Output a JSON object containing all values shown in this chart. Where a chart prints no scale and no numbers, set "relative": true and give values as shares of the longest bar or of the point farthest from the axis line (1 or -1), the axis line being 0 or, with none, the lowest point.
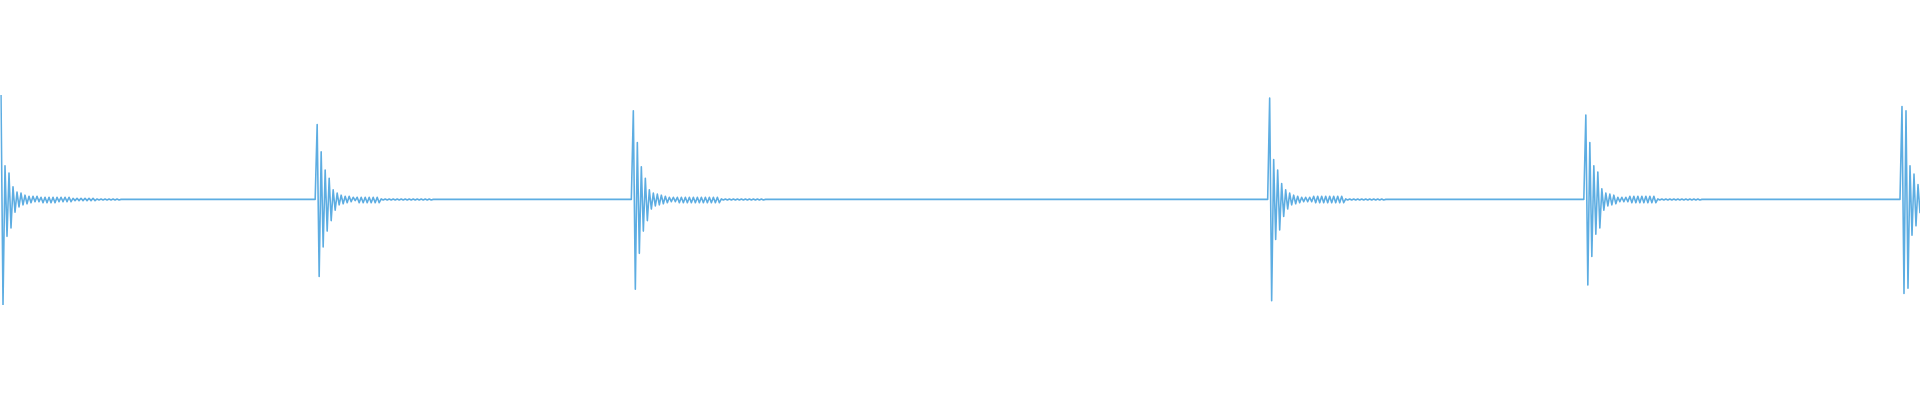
{
  "chart_data": {
    "type": "line",
    "relative": true,
    "categories": [
      null,
      null,
      null,
      null,
      null,
      null,
      null,
      null,
      null,
      null,
      null,
      null,
      null,
      null,
      null,
      null,
      null,
      null,
      null,
      null,
      null,
      null,
      null,
      null,
      null,
      null,
      null,
      null,
      null,
      null,
      null,
      null,
      null,
      null,
      null,
      null,
      null,
      null,
      null,
      null,
      null,
      null,
      null,
      null,
      null,
      null,
      null,
      null,
      null,
      null,
      null,
      null,
      null,
      null,
      null,
      null,
      null,
      null,
      null,
      null,
      null,
      null,
      null,
      null,
      null,
      null,
      null,
      null,
      null,
      null,
      null,
      null,
      null,
      null,
      null,
      null,
      null,
      null,
      null,
      null,
      null,
      null,
      null,
      null,
      null,
      null,
      null,
      null,
      null,
      null,
      null,
      null,
      null,
      null,
      null,
      null,
      null,
      null,
      null,
      null,
      null,
      null,
      null,
      null,
      null,
      null,
      null,
      null,
      null,
      null,
      null,
      null,
      null,
      null,
      null,
      null,
      null,
      null,
      null,
      null,
      null,
      null,
      null,
      null,
      null,
      null,
      null,
      null,
      null,
      null,
      null,
      null,
      null,
      null,
      null,
      null,
      null,
      null,
      null,
      null,
      null,
      null,
      null,
      null,
      null,
      null,
      null,
      null,
      null,
      null,
      null,
      null,
      null,
      null,
      null,
      null,
      null,
      null,
      null,
      null,
      null,
      null,
      null,
      null,
      null,
      null,
      null,
      null,
      null,
      null,
      null,
      null,
      null,
      null,
      null,
      null,
      null,
      null,
      null,
      null,
      null,
      null,
      null,
      null,
      null,
      null,
      null,
      null,
      null,
      null,
      null,
      null,
      null,
      null,
      null,
      null,
      null,
      null,
      null,
      null,
      null,
      null,
      null,
      null,
      null,
      null,
      null,
      null,
      null,
      null,
      null,
      null,
      null,
      null,
      null,
      null,
      null,
      null,
      null,
      null,
      null,
      null,
      null,
      null,
      null,
      null,
      null,
      null,
      null,
      null,
      null,
      null,
      null,
      null,
      null,
      null,
      null,
      null,
      null,
      null,
      null,
      null,
      null,
      null,
      null,
      null,
      null,
      null,
      null,
      null,
      null,
      null,
      null,
      null,
      null,
      null,
      null,
      null,
      null,
      null,
      null,
      null,
      null,
      null,
      null,
      null,
      null,
      null,
      null,
      null,
      null,
      null,
      null,
      null,
      null,
      null,
      null,
      null,
      null,
      null,
      null,
      null,
      null,
      null,
      null,
      null,
      null,
      null,
      null,
      null,
      null,
      null,
      null,
      null,
      null,
      null,
      null,
      null,
      null,
      null,
      null,
      null,
      null,
      null,
      null,
      null,
      null,
      null,
      null,
      null,
      null,
      null,
      null,
      null,
      null,
      null,
      null,
      null,
      null,
      null,
      null,
      null,
      null,
      null,
      null,
      null,
      null,
      null,
      null,
      null,
      null,
      null,
      null,
      null,
      null,
      null,
      null,
      null,
      null,
      null,
      null,
      null,
      null,
      null,
      null,
      null,
      null,
      null,
      null,
      null,
      null,
      null,
      null,
      null,
      null,
      null,
      null,
      null,
      null,
      null,
      null,
      null,
      null,
      null,
      null,
      null,
      null,
      null,
      null,
      null,
      null,
      null,
      null,
      null,
      null,
      null,
      null,
      null,
      null,
      null,
      null,
      null,
      null,
      null,
      null,
      null,
      null,
      null,
      null,
      null,
      null,
      null,
      null,
      null,
      null,
      null,
      null,
      null,
      null,
      null,
      null,
      null,
      null,
      null,
      null,
      null,
      null,
      null,
      null,
      null,
      null,
      null,
      null,
      null,
      null,
      null,
      null,
      null,
      null,
      null,
      null,
      null,
      null,
      null,
      null,
      null,
      null,
      null,
      null,
      null,
      null,
      null,
      null,
      null,
      null,
      null,
      null,
      null,
      null,
      null,
      null,
      null,
      null,
      null,
      null,
      null,
      null,
      null,
      null,
      null,
      null,
      null,
      null,
      null,
      null,
      null,
      null,
      null,
      null,
      null,
      null,
      null,
      null,
      null,
      null,
      null,
      null,
      null,
      null,
      null,
      null,
      null,
      null,
      null,
      null,
      null,
      null,
      null,
      null,
      null,
      null,
      null,
      null,
      null,
      null,
      null,
      null,
      null,
      null,
      null,
      null,
      null,
      null,
      null,
      null,
      null,
      null,
      null,
      null,
      null,
      null,
      null,
      null,
      null,
      null,
      null,
      null,
      null,
      null,
      null,
      null,
      null,
      null,
      null,
      null,
      null,
      null,
      null,
      null,
      null,
      null,
      null,
      null,
      null,
      null,
      null,
      null,
      null,
      null,
      null,
      null,
      null,
      null,
      null,
      null,
      null,
      null,
      null,
      null,
      null,
      null,
      null,
      null,
      null,
      null,
      null,
      null,
      null,
      null,
      null,
      null,
      null,
      null,
      null,
      null,
      null,
      null,
      null,
      null,
      null,
      null,
      null,
      null,
      null,
      null,
      null,
      null,
      null,
      null,
      null,
      null,
      null,
      null,
      null,
      null,
      null,
      null,
      null,
      null,
      null,
      null,
      null,
      null,
      null,
      null,
      null,
      null,
      null,
      null,
      null,
      null,
      null,
      null,
      null,
      null,
      null,
      null,
      null,
      null,
      null,
      null,
      null,
      null,
      null,
      null,
      null,
      null,
      null,
      null,
      null,
      null,
      null,
      null,
      null,
      null,
      null,
      null,
      null,
      null,
      null,
      null,
      null,
      null,
      null,
      null,
      null,
      null,
      null,
      null,
      null,
      null,
      null,
      null,
      null,
      null,
      null,
      null,
      null,
      null,
      null,
      null,
      null,
      null,
      null,
      null,
      null,
      null,
      null,
      null,
      null,
      null,
      null,
      null,
      null,
      null,
      null,
      null,
      null,
      null,
      null,
      null,
      null,
      null,
      null,
      null,
      null,
      null,
      null,
      null,
      null,
      null,
      null,
      null,
      null,
      null,
      null,
      null,
      null,
      null,
      null,
      null,
      null,
      null,
      null,
      null,
      null,
      null,
      null,
      null,
      null,
      null,
      null,
      null,
      null,
      null,
      null,
      null,
      null,
      null,
      null,
      null,
      null,
      null,
      null,
      null,
      null,
      null,
      null,
      null,
      null,
      null,
      null,
      null,
      null,
      null,
      null,
      null,
      null,
      null,
      null,
      null,
      null,
      null,
      null,
      null,
      null,
      null,
      null,
      null,
      null,
      null,
      null,
      null,
      null,
      null,
      null,
      null,
      null,
      null,
      null,
      null,
      null,
      null,
      null,
      null,
      null,
      null,
      null,
      null,
      null,
      null,
      null,
      null,
      null,
      null,
      null,
      null,
      null,
      null,
      null,
      null,
      null,
      null,
      null,
      null,
      null,
      null,
      null,
      null,
      null,
      null,
      null,
      null,
      null,
      null,
      null,
      null,
      null,
      null,
      null,
      null,
      null,
      null,
      null,
      null,
      null,
      null,
      null,
      null,
      null,
      null,
      null,
      null,
      null,
      null,
      null,
      null,
      null,
      null,
      null,
      null,
      null,
      null,
      null,
      null,
      null,
      null,
      null,
      null,
      null,
      null,
      null,
      null,
      null,
      null,
      null,
      null,
      null,
      null,
      null,
      null,
      null,
      null,
      null,
      null,
      null,
      null,
      null,
      null,
      null,
      null,
      null,
      null,
      null,
      null,
      null,
      null,
      null,
      null,
      null,
      null,
      null,
      null,
      null,
      null,
      null,
      null,
      null,
      null,
      null,
      null,
      null,
      null,
      null,
      null,
      null,
      null,
      null,
      null,
      null,
      null,
      null,
      null,
      null,
      null,
      null,
      null,
      null,
      null,
      null,
      null,
      null,
      null,
      null,
      null,
      null,
      null,
      null,
      null,
      null,
      null,
      null,
      null,
      null,
      null,
      null,
      null,
      null,
      null,
      null,
      null,
      null,
      null,
      null,
      null,
      null,
      null,
      null,
      null,
      null,
      null,
      null,
      null,
      null,
      null,
      null,
      null,
      null,
      null,
      null,
      null,
      null,
      null,
      null,
      null,
      null,
      null,
      null,
      null,
      null,
      null,
      null,
      null,
      null,
      null,
      null,
      null,
      null,
      null,
      null,
      null,
      null,
      null,
      null,
      null,
      null,
      null,
      null,
      null,
      null,
      null,
      null,
      null,
      null,
      null,
      null,
      null,
      null,
      null,
      null,
      null,
      null,
      null,
      null,
      null,
      null,
      null,
      null,
      null,
      null
    ],
    "series": [
      {
        "color": "#5dade2",
        "values": [
          1,
          0,
          0.663,
          0.327,
          0.628,
          0.367,
          0.563,
          0.442,
          0.538,
          0.467,
          0.533,
          0.477,
          0.523,
          0.482,
          0.518,
          0.487,
          0.518,
          0.492,
          0.518,
          0.492,
          0.513,
          0.487,
          0.513,
          0.487,
          0.513,
          0.487,
          0.513,
          0.487,
          0.513,
          0.492,
          0.513,
          0.492,
          0.513,
          0.492,
          0.513,
          0.492,
          0.508,
          0.497,
          0.508,
          0.497,
          0.508,
          0.497,
          0.508,
          0.497,
          0.508,
          0.497,
          0.508,
          0.497,
          0.505,
          0.5,
          0.505,
          0.5,
          0.505,
          0.5,
          0.505,
          0.5,
          0.505,
          0.5,
          0.505,
          0.5,
          0.503,
          0.503,
          0.503,
          0.503,
          0.503,
          0.503,
          0.503,
          0.503,
          0.503,
          0.503,
          0.503,
          0.503,
          0.503,
          0.503,
          0.503,
          0.503,
          0.503,
          0.503,
          0.503,
          0.503,
          0.503,
          0.503,
          0.503,
          0.503,
          0.503,
          0.503,
          0.503,
          0.503,
          0.503,
          0.503,
          0.503,
          0.503,
          0.503,
          0.503,
          0.503,
          0.503,
          0.503,
          0.503,
          0.503,
          0.503,
          0.503,
          0.503,
          0.503,
          0.503,
          0.503,
          0.503,
          0.503,
          0.503,
          0.503,
          0.503,
          0.503,
          0.503,
          0.503,
          0.503,
          0.503,
          0.503,
          0.503,
          0.503,
          0.503,
          0.503,
          0.503,
          0.503,
          0.503,
          0.503,
          0.503,
          0.503,
          0.503,
          0.503,
          0.503,
          0.503,
          0.503,
          0.503,
          0.503,
          0.503,
          0.503,
          0.503,
          0.503,
          0.503,
          0.503,
          0.503,
          0.503,
          0.503,
          0.503,
          0.503,
          0.503,
          0.503,
          0.503,
          0.503,
          0.503,
          0.503,
          0.503,
          0.503,
          0.503,
          0.503,
          0.503,
          0.503,
          0.503,
          0.503,
          0.859,
          0.136,
          0.729,
          0.276,
          0.643,
          0.352,
          0.603,
          0.402,
          0.548,
          0.452,
          0.533,
          0.477,
          0.523,
          0.482,
          0.518,
          0.487,
          0.518,
          0.492,
          0.513,
          0.497,
          0.513,
          0.487,
          0.513,
          0.487,
          0.513,
          0.487,
          0.513,
          0.487,
          0.513,
          0.487,
          0.513,
          0.487,
          0.505,
          0.5,
          0.505,
          0.5,
          0.505,
          0.5,
          0.505,
          0.5,
          0.505,
          0.5,
          0.505,
          0.5,
          0.505,
          0.5,
          0.505,
          0.5,
          0.505,
          0.5,
          0.505,
          0.5,
          0.505,
          0.5,
          0.505,
          0.5,
          0.505,
          0.5,
          0.503,
          0.503,
          0.503,
          0.503,
          0.503,
          0.503,
          0.503,
          0.503,
          0.503,
          0.503,
          0.503,
          0.503,
          0.503,
          0.503,
          0.503,
          0.503,
          0.503,
          0.503,
          0.503,
          0.503,
          0.503,
          0.503,
          0.503,
          0.503,
          0.503,
          0.503,
          0.503,
          0.503,
          0.503,
          0.503,
          0.503,
          0.503,
          0.503,
          0.503,
          0.503,
          0.503,
          0.503,
          0.503,
          0.503,
          0.503,
          0.503,
          0.503,
          0.503,
          0.503,
          0.503,
          0.503,
          0.503,
          0.503,
          0.503,
          0.503,
          0.503,
          0.503,
          0.503,
          0.503,
          0.503,
          0.503,
          0.503,
          0.503,
          0.503,
          0.503,
          0.503,
          0.503,
          0.503,
          0.503,
          0.503,
          0.503,
          0.503,
          0.503,
          0.503,
          0.503,
          0.503,
          0.503,
          0.503,
          0.503,
          0.503,
          0.503,
          0.503,
          0.503,
          0.503,
          0.503,
          0.503,
          0.503,
          0.503,
          0.503,
          0.503,
          0.503,
          0.503,
          0.503,
          0.503,
          0.503,
          0.503,
          0.503,
          0.503,
          0.503,
          0.503,
          0.503,
          0.503,
          0.503,
          0.503,
          0.503,
          0.925,
          0.075,
          0.774,
          0.246,
          0.658,
          0.352,
          0.603,
          0.402,
          0.548,
          0.457,
          0.533,
          0.472,
          0.528,
          0.477,
          0.523,
          0.482,
          0.518,
          0.487,
          0.513,
          0.492,
          0.513,
          0.492,
          0.513,
          0.487,
          0.513,
          0.487,
          0.513,
          0.487,
          0.513,
          0.487,
          0.513,
          0.487,
          0.513,
          0.487,
          0.513,
          0.487,
          0.513,
          0.487,
          0.513,
          0.487,
          0.513,
          0.487,
          0.513,
          0.487,
          0.505,
          0.5,
          0.505,
          0.5,
          0.505,
          0.5,
          0.505,
          0.5,
          0.505,
          0.5,
          0.505,
          0.5,
          0.505,
          0.5,
          0.505,
          0.5,
          0.505,
          0.5,
          0.505,
          0.5,
          0.505,
          0.5,
          0.503,
          0.503,
          0.503,
          0.503,
          0.503,
          0.503,
          0.503,
          0.503,
          0.503,
          0.503,
          0.503,
          0.503,
          0.503,
          0.503,
          0.503,
          0.503,
          0.503,
          0.503,
          0.503,
          0.503,
          0.503,
          0.503,
          0.503,
          0.503,
          0.503,
          0.503,
          0.503,
          0.503,
          0.503,
          0.503,
          0.503,
          0.503,
          0.503,
          0.503,
          0.503,
          0.503,
          0.503,
          0.503,
          0.503,
          0.503,
          0.503,
          0.503,
          0.503,
          0.503,
          0.503,
          0.503,
          0.503,
          0.503,
          0.503,
          0.503,
          0.503,
          0.503,
          0.503,
          0.503,
          0.503,
          0.503,
          0.503,
          0.503,
          0.503,
          0.503,
          0.503,
          0.503,
          0.503,
          0.503,
          0.503,
          0.503,
          0.503,
          0.503,
          0.503,
          0.503,
          0.503,
          0.503,
          0.503,
          0.503,
          0.503,
          0.503,
          0.503,
          0.503,
          0.503,
          0.503,
          0.503,
          0.503,
          0.503,
          0.503,
          0.503,
          0.503,
          0.503,
          0.503,
          0.503,
          0.503,
          0.503,
          0.503,
          0.503,
          0.503,
          0.503,
          0.503,
          0.503,
          0.503,
          0.503,
          0.503,
          0.503,
          0.503,
          0.503,
          0.503,
          0.503,
          0.503,
          0.503,
          0.503,
          0.503,
          0.503,
          0.503,
          0.503,
          0.503,
          0.503,
          0.503,
          0.503,
          0.503,
          0.503,
          0.503,
          0.503,
          0.503,
          0.503,
          0.503,
          0.503,
          0.503,
          0.503,
          0.503,
          0.503,
          0.503,
          0.503,
          0.503,
          0.503,
          0.503,
          0.503,
          0.503,
          0.503,
          0.503,
          0.503,
          0.503,
          0.503,
          0.503,
          0.503,
          0.503,
          0.503,
          0.503,
          0.503,
          0.503,
          0.503,
          0.503,
          0.503,
          0.503,
          0.503,
          0.503,
          0.503,
          0.503,
          0.503,
          0.503,
          0.503,
          0.503,
          0.503,
          0.503,
          0.503,
          0.503,
          0.503,
          0.503,
          0.503,
          0.503,
          0.503,
          0.503,
          0.503,
          0.503,
          0.503,
          0.503,
          0.503,
          0.503,
          0.503,
          0.503,
          0.503,
          0.503,
          0.503,
          0.503,
          0.503,
          0.503,
          0.503,
          0.503,
          0.503,
          0.503,
          0.503,
          0.503,
          0.503,
          0.503,
          0.503,
          0.503,
          0.503,
          0.503,
          0.503,
          0.503,
          0.503,
          0.503,
          0.503,
          0.503,
          0.503,
          0.503,
          0.503,
          0.503,
          0.503,
          0.503,
          0.503,
          0.503,
          0.503,
          0.503,
          0.503,
          0.503,
          0.503,
          0.503,
          0.503,
          0.503,
          0.503,
          0.503,
          0.503,
          0.503,
          0.503,
          0.503,
          0.503,
          0.503,
          0.503,
          0.503,
          0.503,
          0.503,
          0.503,
          0.503,
          0.503,
          0.503,
          0.503,
          0.503,
          0.503,
          0.503,
          0.503,
          0.503,
          0.503,
          0.503,
          0.503,
          0.503,
          0.503,
          0.503,
          0.503,
          0.503,
          0.503,
          0.503,
          0.503,
          0.503,
          0.503,
          0.985,
          0.02,
          0.693,
          0.312,
          0.643,
          0.357,
          0.578,
          0.422,
          0.548,
          0.457,
          0.533,
          0.477,
          0.523,
          0.482,
          0.518,
          0.487,
          0.513,
          0.492,
          0.513,
          0.492,
          0.513,
          0.492,
          0.518,
          0.487,
          0.518,
          0.487,
          0.518,
          0.487,
          0.518,
          0.487,
          0.518,
          0.487,
          0.518,
          0.487,
          0.518,
          0.487,
          0.518,
          0.487,
          0.505,
          0.5,
          0.505,
          0.5,
          0.505,
          0.5,
          0.505,
          0.5,
          0.505,
          0.5,
          0.505,
          0.5,
          0.505,
          0.5,
          0.505,
          0.5,
          0.505,
          0.5,
          0.505,
          0.5,
          0.503,
          0.503,
          0.503,
          0.503,
          0.503,
          0.503,
          0.503,
          0.503,
          0.503,
          0.503,
          0.503,
          0.503,
          0.503,
          0.503,
          0.503,
          0.503,
          0.503,
          0.503,
          0.503,
          0.503,
          0.503,
          0.503,
          0.503,
          0.503,
          0.503,
          0.503,
          0.503,
          0.503,
          0.503,
          0.503,
          0.503,
          0.503,
          0.503,
          0.503,
          0.503,
          0.503,
          0.503,
          0.503,
          0.503,
          0.503,
          0.503,
          0.503,
          0.503,
          0.503,
          0.503,
          0.503,
          0.503,
          0.503,
          0.503,
          0.503,
          0.503,
          0.503,
          0.503,
          0.503,
          0.503,
          0.503,
          0.503,
          0.503,
          0.503,
          0.503,
          0.503,
          0.503,
          0.503,
          0.503,
          0.503,
          0.503,
          0.503,
          0.503,
          0.503,
          0.503,
          0.503,
          0.503,
          0.503,
          0.503,
          0.503,
          0.503,
          0.503,
          0.503,
          0.503,
          0.503,
          0.503,
          0.503,
          0.503,
          0.503,
          0.503,
          0.503,
          0.503,
          0.503,
          0.503,
          0.503,
          0.503,
          0.503,
          0.503,
          0.503,
          0.503,
          0.503,
          0.503,
          0.503,
          0.503,
          0.503,
          0.905,
          0.095,
          0.774,
          0.231,
          0.663,
          0.337,
          0.633,
          0.367,
          0.553,
          0.452,
          0.533,
          0.472,
          0.528,
          0.477,
          0.523,
          0.482,
          0.513,
          0.492,
          0.513,
          0.492,
          0.513,
          0.492,
          0.518,
          0.487,
          0.518,
          0.487,
          0.518,
          0.487,
          0.518,
          0.487,
          0.518,
          0.487,
          0.518,
          0.487,
          0.518,
          0.487,
          0.505,
          0.5,
          0.505,
          0.5,
          0.505,
          0.5,
          0.505,
          0.5,
          0.505,
          0.5,
          0.505,
          0.5,
          0.505,
          0.5,
          0.505,
          0.5,
          0.505,
          0.5,
          0.505,
          0.5,
          0.505,
          0.5,
          0.503,
          0.503,
          0.503,
          0.503,
          0.503,
          0.503,
          0.503,
          0.503,
          0.503,
          0.503,
          0.503,
          0.503,
          0.503,
          0.503,
          0.503,
          0.503,
          0.503,
          0.503,
          0.503,
          0.503,
          0.503,
          0.503,
          0.503,
          0.503,
          0.503,
          0.503,
          0.503,
          0.503,
          0.503,
          0.503,
          0.503,
          0.503,
          0.503,
          0.503,
          0.503,
          0.503,
          0.503,
          0.503,
          0.503,
          0.503,
          0.503,
          0.503,
          0.503,
          0.503,
          0.503,
          0.503,
          0.503,
          0.503,
          0.503,
          0.503,
          0.503,
          0.503,
          0.503,
          0.503,
          0.503,
          0.503,
          0.503,
          0.503,
          0.503,
          0.503,
          0.503,
          0.503,
          0.503,
          0.503,
          0.503,
          0.503,
          0.503,
          0.503,
          0.503,
          0.503,
          0.503,
          0.503,
          0.503,
          0.503,
          0.503,
          0.503,
          0.503,
          0.503,
          0.503,
          0.503,
          0.503,
          0.503,
          0.503,
          0.503,
          0.503,
          0.503,
          0.503,
          0.503,
          0.503,
          0.503,
          0.503,
          0.503,
          0.503,
          0.503,
          0.503,
          0.503,
          0.503,
          0.503,
          0.503,
          0.503,
          0.945,
          0.055,
          0.925,
          0.08,
          0.663,
          0.332,
          0.623,
          0.377,
          0.573,
          0.437
        ]
      }
    ]
  }
}
